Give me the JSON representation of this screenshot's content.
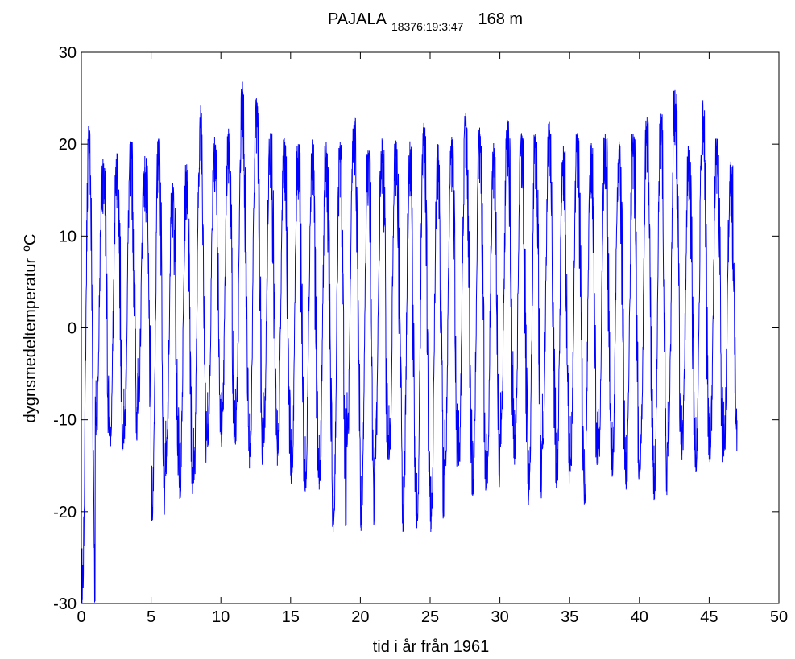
{
  "chart_data": {
    "type": "line",
    "title": {
      "station": "PAJALA",
      "station_code": "18376:19:3:47",
      "elevation": "168 m"
    },
    "xlabel": "tid i år från 1961",
    "ylabel": {
      "text": "dygnsmedeltemperatur",
      "unit_sup": "o",
      "unit": "C"
    },
    "xlim": [
      0,
      50
    ],
    "ylim": [
      -30,
      30
    ],
    "xticks": [
      0,
      5,
      10,
      15,
      20,
      25,
      30,
      35,
      40,
      45,
      50
    ],
    "yticks": [
      -30,
      -20,
      -10,
      0,
      10,
      20,
      30
    ],
    "grid": false,
    "line_color": "#0000ff",
    "series": [
      {
        "summer_max": [
          22.1,
          18.4,
          19.0,
          20.3,
          18.7,
          20.7,
          15.8,
          17.8,
          24.2,
          20.8,
          21.7,
          26.8,
          25.0,
          21.2,
          20.7,
          20.0,
          20.5,
          20.2,
          20.2,
          22.9,
          19.3,
          20.6,
          20.4,
          20.3,
          22.3,
          20.0,
          20.8,
          23.4,
          21.8,
          20.1,
          22.6,
          21.2,
          21.1,
          22.5,
          19.8,
          21.2,
          20.1,
          21.1,
          20.3,
          21.1,
          22.9,
          23.3,
          25.9,
          19.8,
          24.8,
          20.6,
          18.1
        ],
        "winter_min": [
          -30.0,
          -11.7,
          -13.5,
          -12.6,
          -9.3,
          -21.0,
          -16.1,
          -18.6,
          -16.9,
          -13.0,
          -13.0,
          -12.7,
          -15.3,
          -13.0,
          -15.0,
          -17.0,
          -17.8,
          -17.6,
          -22.2,
          -13.0,
          -22.1,
          -15.0,
          -14.4,
          -22.2,
          -21.8,
          -22.2,
          -16.0,
          -15.0,
          -18.3,
          -17.5,
          -13.0,
          -14.9,
          -19.3,
          -13.2,
          -17.4,
          -15.6,
          -19.2,
          -14.8,
          -16.2,
          -17.6,
          -15.6,
          -18.8,
          -14.0,
          -14.4,
          -15.7,
          -14.6,
          -14.0
        ]
      }
    ]
  }
}
